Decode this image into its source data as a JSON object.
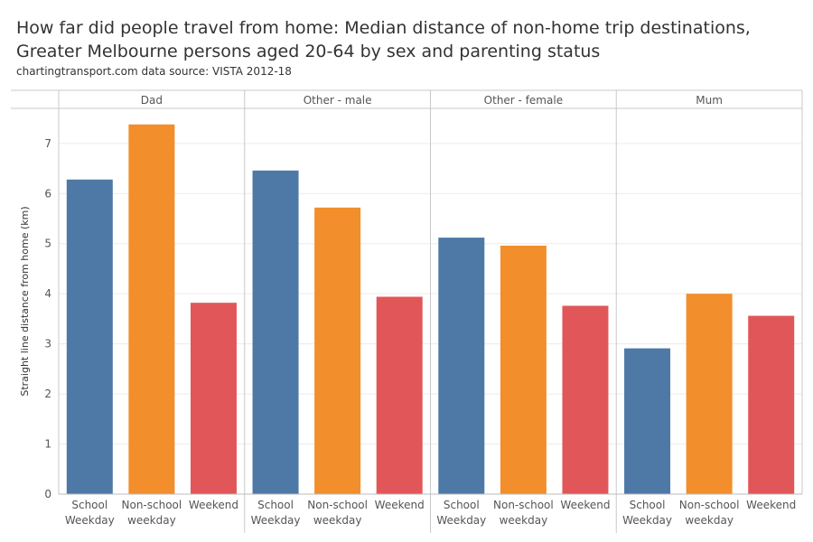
{
  "title_line1": "How far did people travel from home: Median distance of non-home trip destinations,",
  "title_line2": "Greater Melbourne persons aged 20-64 by sex and parenting status",
  "subtitle": "chartingtransport.com  data source: VISTA 2012-18",
  "colors": {
    "school_weekday": "#4e79a7",
    "non_school_weekday": "#f28e2b",
    "weekend": "#e15759",
    "grid": "#ececec",
    "divider": "#c8c8c8",
    "text": "#555555"
  },
  "chart_data": {
    "type": "bar",
    "title": "How far did people travel from home: Median distance of non-home trip destinations, Greater Melbourne persons aged 20-64 by sex and parenting status",
    "ylabel": "Straight line distance from home (km)",
    "xlabel": "",
    "ylim": [
      0,
      7.7
    ],
    "yticks": [
      0,
      1,
      2,
      3,
      4,
      5,
      6,
      7
    ],
    "groups": [
      "Dad",
      "Other - male",
      "Other - female",
      "Mum"
    ],
    "categories": [
      {
        "line1": "School",
        "line2": "Weekday"
      },
      {
        "line1": "Non-school",
        "line2": "weekday"
      },
      {
        "line1": "Weekend",
        "line2": ""
      }
    ],
    "series_keys": [
      "school_weekday",
      "non_school_weekday",
      "weekend"
    ],
    "values": [
      [
        6.28,
        7.38,
        3.82
      ],
      [
        6.46,
        5.72,
        3.94
      ],
      [
        5.12,
        4.96,
        3.76
      ],
      [
        2.91,
        4.0,
        3.56
      ]
    ]
  }
}
